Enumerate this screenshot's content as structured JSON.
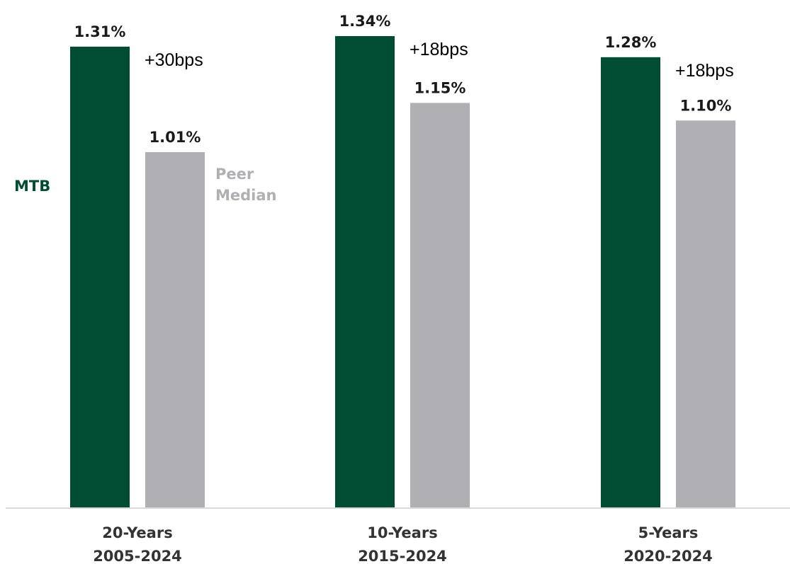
{
  "chart_data": {
    "type": "bar",
    "categories": [
      {
        "line1": "20-Years",
        "line2": "2005-2024"
      },
      {
        "line1": "10-Years",
        "line2": "2015-2024"
      },
      {
        "line1": "5-Years",
        "line2": "2020-2024"
      }
    ],
    "series": [
      {
        "name": "MTB",
        "color": "#004d33",
        "values": [
          1.31,
          1.34,
          1.28
        ],
        "labels": [
          "1.31%",
          "1.34%",
          "1.28%"
        ]
      },
      {
        "name": "Peer Median",
        "name_lines": [
          "Peer",
          "Median"
        ],
        "color": "#b0afb4",
        "values": [
          1.01,
          1.15,
          1.1
        ],
        "labels": [
          "1.01%",
          "1.15%",
          "1.10%"
        ]
      }
    ],
    "differences": [
      "+30bps",
      "+18bps",
      "+18bps"
    ],
    "ylim": [
      0,
      1.34
    ],
    "grid": false,
    "baseline_color": "#d9d9d9",
    "legend": "inline, next to first category"
  }
}
